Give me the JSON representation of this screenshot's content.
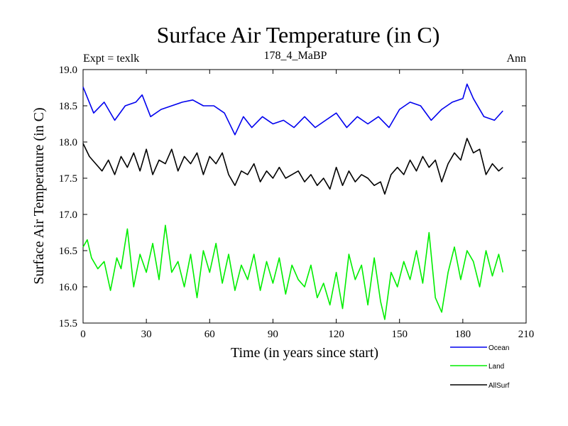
{
  "chart_data": {
    "type": "line",
    "title": "Surface Air Temperature (in C)",
    "subtitle": "178_4_MaBP",
    "left_note": "Expt = texlk",
    "right_note": "Ann",
    "xlabel": "Time (in years since start)",
    "ylabel": "Surface Air Temperature (in C)",
    "xlim": [
      0,
      210
    ],
    "ylim": [
      15.5,
      19.0
    ],
    "xticks": [
      "0",
      "30",
      "60",
      "90",
      "120",
      "150",
      "180",
      "210"
    ],
    "yticks": [
      "15.5",
      "16.0",
      "16.5",
      "17.0",
      "17.5",
      "18.0",
      "18.5",
      "19.0"
    ],
    "legend": [
      {
        "name": "Ocean",
        "color": "#0000ee"
      },
      {
        "name": "Land",
        "color": "#00ee00"
      },
      {
        "name": "AllSurf",
        "color": "#000000"
      }
    ],
    "series": [
      {
        "name": "Ocean",
        "color": "#0000ee",
        "x": [
          0,
          5,
          10,
          15,
          20,
          25,
          28,
          32,
          37,
          42,
          47,
          52,
          57,
          62,
          67,
          72,
          76,
          80,
          85,
          90,
          95,
          100,
          105,
          110,
          115,
          120,
          125,
          130,
          135,
          140,
          145,
          150,
          155,
          160,
          165,
          170,
          175,
          180,
          182,
          185,
          190,
          195,
          199
        ],
        "values": [
          18.76,
          18.4,
          18.55,
          18.3,
          18.5,
          18.55,
          18.65,
          18.35,
          18.45,
          18.5,
          18.55,
          18.58,
          18.5,
          18.5,
          18.4,
          18.1,
          18.35,
          18.2,
          18.35,
          18.25,
          18.3,
          18.2,
          18.35,
          18.2,
          18.3,
          18.4,
          18.2,
          18.35,
          18.25,
          18.35,
          18.2,
          18.45,
          18.55,
          18.5,
          18.3,
          18.45,
          18.55,
          18.6,
          18.8,
          18.6,
          18.35,
          18.3,
          18.43
        ]
      },
      {
        "name": "Land",
        "color": "#00ee00",
        "x": [
          0,
          2,
          4,
          7,
          10,
          13,
          16,
          18,
          21,
          24,
          27,
          30,
          33,
          36,
          39,
          42,
          45,
          48,
          51,
          54,
          57,
          60,
          63,
          66,
          69,
          72,
          75,
          78,
          81,
          84,
          87,
          90,
          93,
          96,
          99,
          102,
          105,
          108,
          111,
          114,
          117,
          120,
          123,
          126,
          129,
          132,
          135,
          138,
          141,
          143,
          146,
          149,
          152,
          155,
          158,
          161,
          164,
          167,
          170,
          173,
          176,
          179,
          182,
          185,
          188,
          191,
          194,
          197,
          199
        ],
        "values": [
          16.55,
          16.65,
          16.4,
          16.25,
          16.35,
          15.95,
          16.4,
          16.25,
          16.8,
          16.0,
          16.45,
          16.2,
          16.6,
          16.1,
          16.85,
          16.2,
          16.35,
          16.0,
          16.45,
          15.85,
          16.5,
          16.2,
          16.6,
          16.05,
          16.45,
          15.95,
          16.3,
          16.1,
          16.45,
          15.95,
          16.35,
          16.05,
          16.4,
          15.9,
          16.3,
          16.1,
          16.0,
          16.3,
          15.85,
          16.05,
          15.75,
          16.2,
          15.7,
          16.45,
          16.1,
          16.3,
          15.75,
          16.4,
          15.8,
          15.55,
          16.2,
          16.0,
          16.35,
          16.1,
          16.5,
          16.05,
          16.75,
          15.85,
          15.65,
          16.2,
          16.55,
          16.1,
          16.5,
          16.35,
          16.0,
          16.5,
          16.15,
          16.45,
          16.2
        ]
      },
      {
        "name": "AllSurf",
        "color": "#000000",
        "x": [
          0,
          3,
          6,
          9,
          12,
          15,
          18,
          21,
          24,
          27,
          30,
          33,
          36,
          39,
          42,
          45,
          48,
          51,
          54,
          57,
          60,
          63,
          66,
          69,
          72,
          75,
          78,
          81,
          84,
          87,
          90,
          93,
          96,
          99,
          102,
          105,
          108,
          111,
          114,
          117,
          120,
          123,
          126,
          129,
          132,
          135,
          138,
          141,
          143,
          146,
          149,
          152,
          155,
          158,
          161,
          164,
          167,
          170,
          173,
          176,
          179,
          182,
          185,
          188,
          191,
          194,
          197,
          199
        ],
        "values": [
          17.98,
          17.8,
          17.7,
          17.6,
          17.75,
          17.55,
          17.8,
          17.65,
          17.85,
          17.6,
          17.9,
          17.55,
          17.75,
          17.7,
          17.9,
          17.6,
          17.8,
          17.7,
          17.85,
          17.55,
          17.8,
          17.7,
          17.85,
          17.55,
          17.4,
          17.6,
          17.55,
          17.7,
          17.45,
          17.6,
          17.5,
          17.65,
          17.5,
          17.55,
          17.6,
          17.45,
          17.55,
          17.4,
          17.5,
          17.35,
          17.65,
          17.4,
          17.6,
          17.45,
          17.55,
          17.5,
          17.4,
          17.45,
          17.28,
          17.55,
          17.65,
          17.55,
          17.75,
          17.6,
          17.8,
          17.65,
          17.75,
          17.45,
          17.7,
          17.85,
          17.75,
          18.05,
          17.85,
          17.9,
          17.55,
          17.7,
          17.6,
          17.65
        ]
      }
    ]
  }
}
